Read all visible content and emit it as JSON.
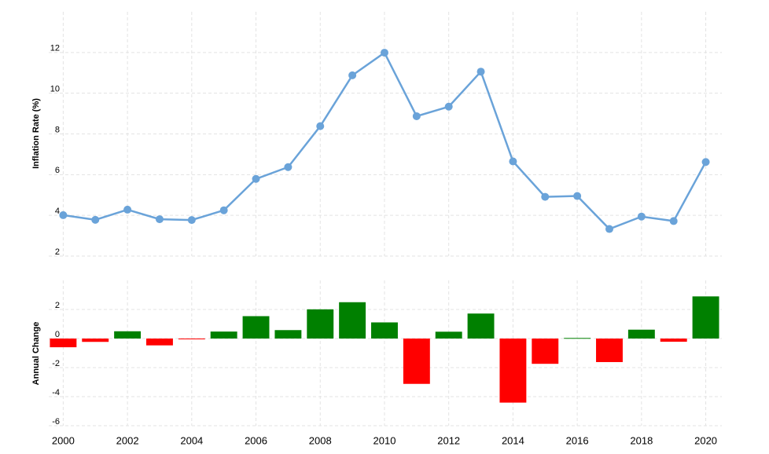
{
  "chart_data": [
    {
      "type": "line",
      "y_label": "Inflation Rate (%)",
      "x": [
        2000,
        2001,
        2002,
        2003,
        2004,
        2005,
        2006,
        2007,
        2008,
        2009,
        2010,
        2011,
        2012,
        2013,
        2014,
        2015,
        2016,
        2017,
        2018,
        2019,
        2020
      ],
      "series": [
        {
          "color": "#6aa3d9",
          "values": [
            4.01,
            3.78,
            4.28,
            3.81,
            3.77,
            4.25,
            5.79,
            6.37,
            8.38,
            10.88,
            11.99,
            8.87,
            9.34,
            11.06,
            6.65,
            4.91,
            4.95,
            3.33,
            3.94,
            3.72,
            6.62
          ]
        }
      ],
      "xlim": [
        1999.55,
        2020.5
      ],
      "xticks": [
        2000,
        2002,
        2004,
        2006,
        2008,
        2010,
        2012,
        2014,
        2016,
        2018,
        2020
      ],
      "ylim": [
        2,
        14
      ],
      "yticks": [
        2,
        4,
        6,
        8,
        10,
        12
      ],
      "grid": true
    },
    {
      "type": "bar",
      "y_label": "Annual Change",
      "x": [
        2000,
        2001,
        2002,
        2003,
        2004,
        2005,
        2006,
        2007,
        2008,
        2009,
        2010,
        2011,
        2012,
        2013,
        2014,
        2015,
        2016,
        2017,
        2018,
        2019,
        2020
      ],
      "values": [
        -0.6,
        -0.23,
        0.5,
        -0.47,
        -0.04,
        0.48,
        1.54,
        0.58,
        2.01,
        2.5,
        1.11,
        -3.12,
        0.47,
        1.72,
        -4.41,
        -1.74,
        0.04,
        -1.62,
        0.61,
        -0.22,
        2.9
      ],
      "positive_color": "#008000",
      "negative_color": "#ff0000",
      "xlim": [
        1999.55,
        2020.5
      ],
      "xticks": [
        2000,
        2002,
        2004,
        2006,
        2008,
        2010,
        2012,
        2014,
        2016,
        2018,
        2020
      ],
      "ylim": [
        -6,
        4
      ],
      "yticks": [
        -6,
        -4,
        -2,
        0,
        2
      ],
      "grid": true
    }
  ]
}
